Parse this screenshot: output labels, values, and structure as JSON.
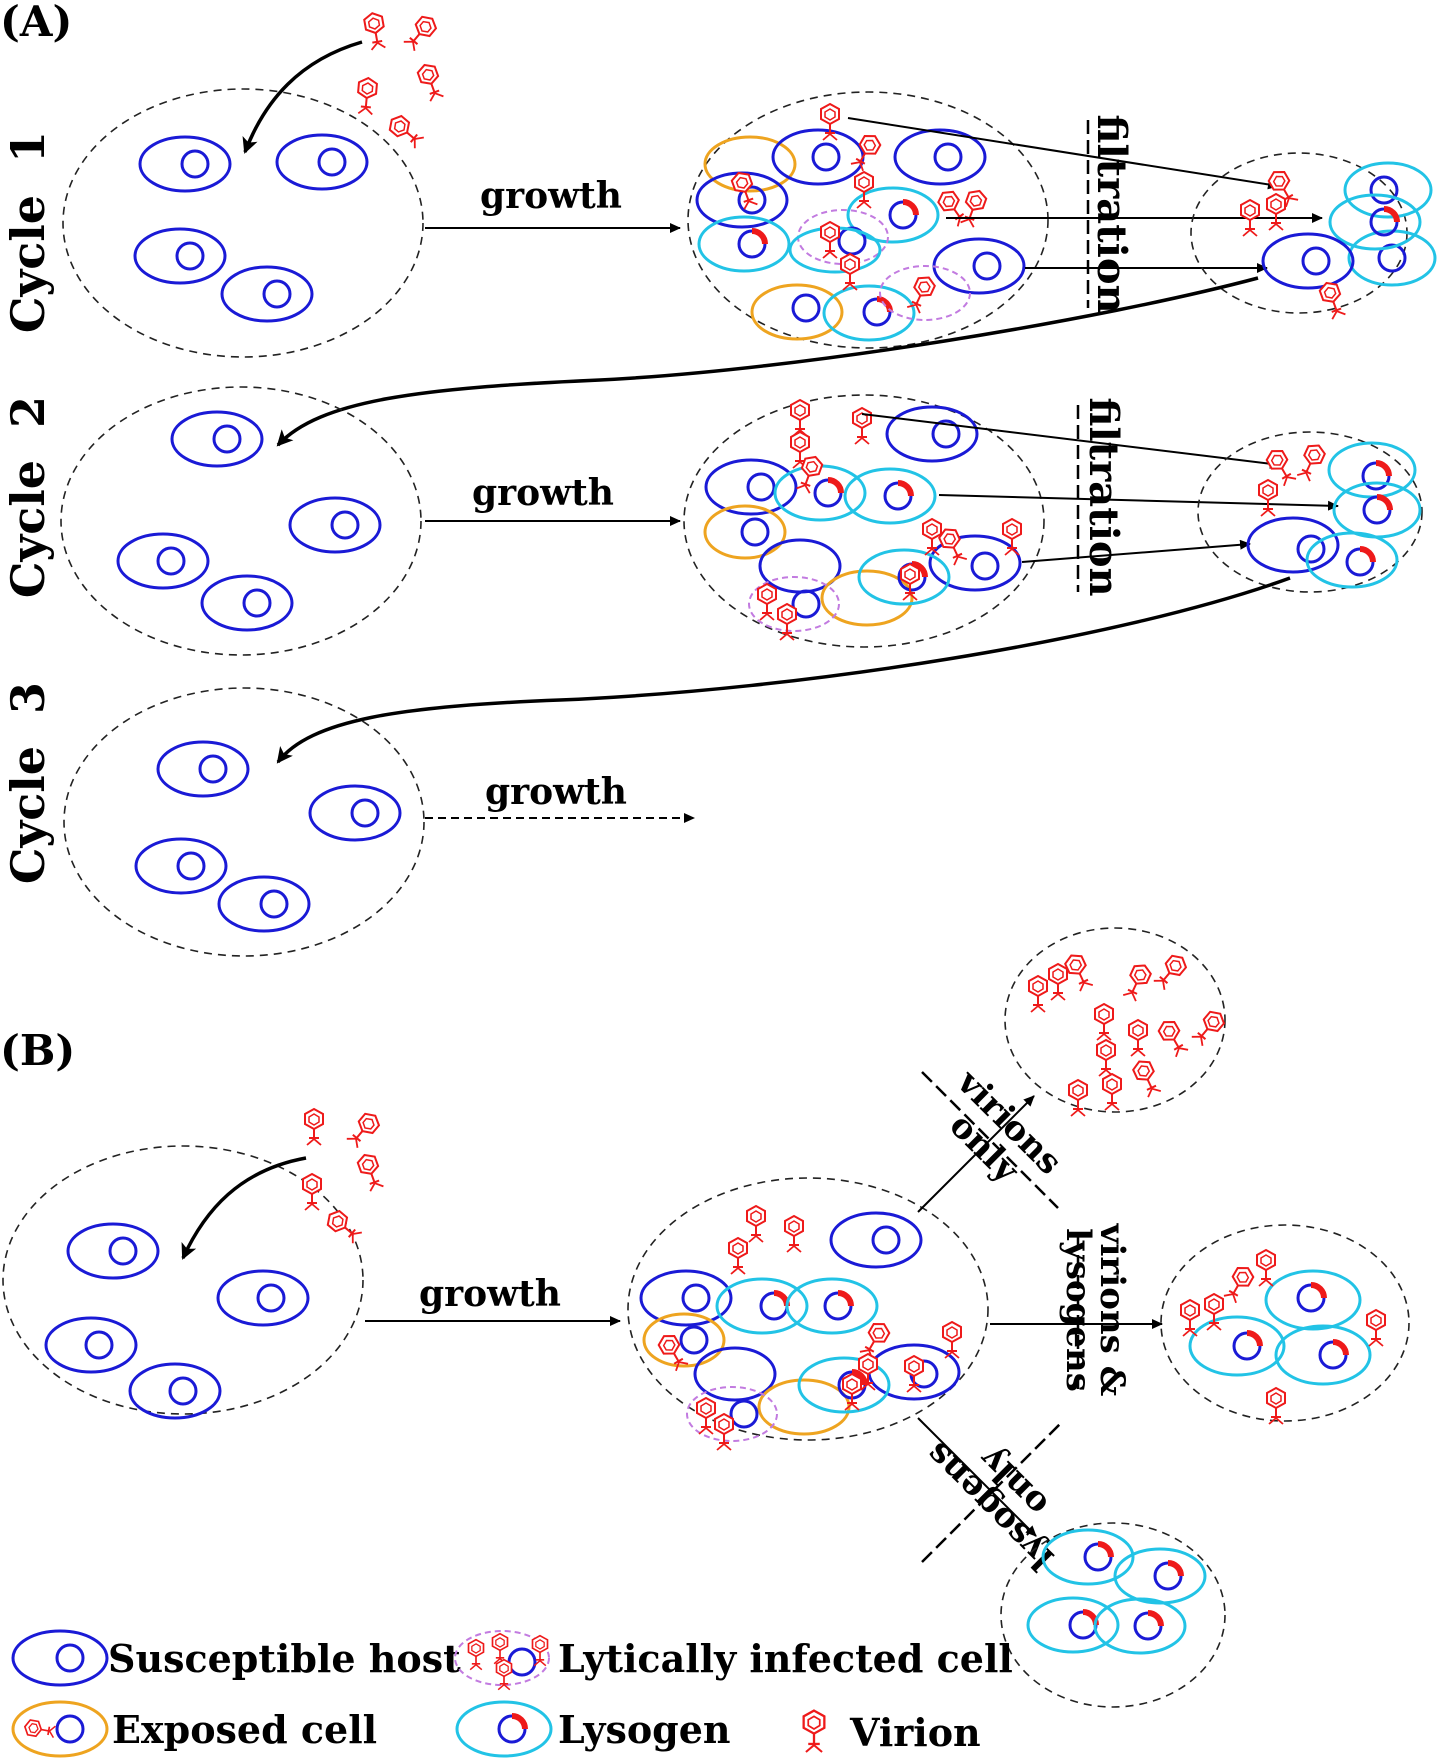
{
  "panel_a": {
    "label": "(A)",
    "cycles": [
      "Cycle  1",
      "Cycle  2",
      "Cycle  3"
    ],
    "growth_label": "growth",
    "filtration_label": "filtration"
  },
  "panel_b": {
    "label": "(B)",
    "growth_label": "growth",
    "virions_only": [
      "virions",
      "only"
    ],
    "virions_lysogens": [
      "virions &",
      "lysogens"
    ],
    "lysogens_only": [
      "lysogens",
      "only"
    ]
  },
  "legend": {
    "susceptible": "Susceptible host",
    "lytic": "Lytically infected cell",
    "exposed": "Exposed cell",
    "lysogen": "Lysogen",
    "virion": "Virion"
  },
  "colors": {
    "host": "#1a1ad6",
    "lysogen": "#22c3e6",
    "exposed": "#eea420",
    "lytic": "#c27be0",
    "virion": "#ee1a1a"
  }
}
